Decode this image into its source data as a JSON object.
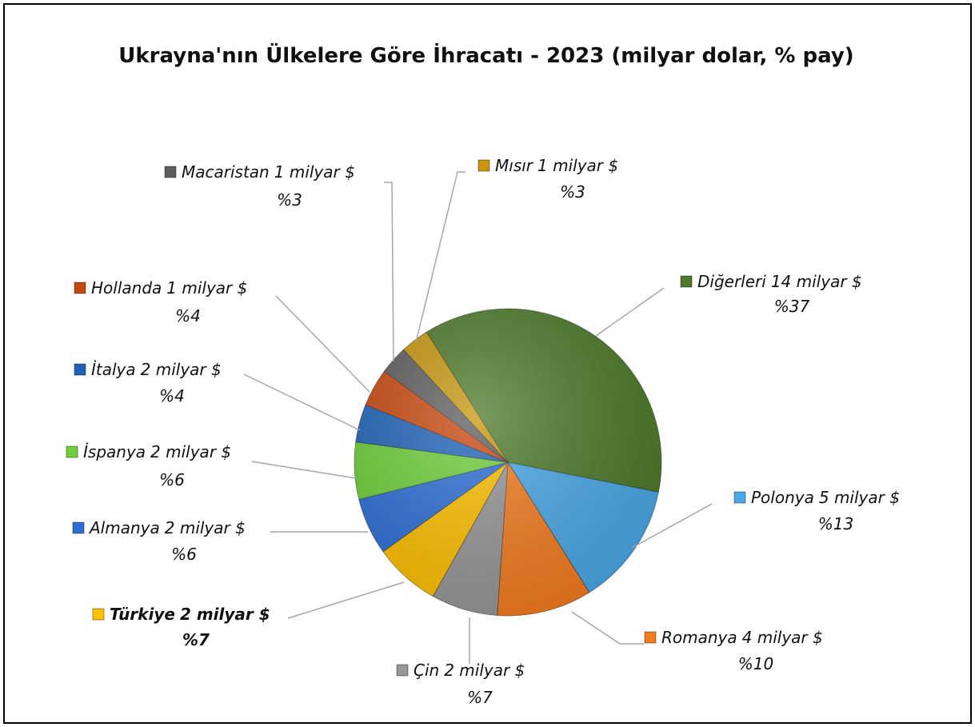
{
  "chart_data": {
    "type": "pie",
    "title": "Ukrayna'nın Ülkelere Göre İhracatı - 2023 (milyar dolar, % pay)",
    "categories": [
      "Diğerleri",
      "Polonya",
      "Romanya",
      "Çin",
      "Türkiye",
      "Almanya",
      "İspanya",
      "İtalya",
      "Hollanda",
      "Macaristan",
      "Mısır"
    ],
    "values": [
      37,
      13,
      10,
      7,
      7,
      6,
      6,
      4,
      4,
      3,
      3
    ],
    "value_labels": [
      "%37",
      "%13",
      "%10",
      "%7",
      "%7",
      "%6",
      "%6",
      "%4",
      "%4",
      "%3",
      "%3"
    ],
    "amounts": [
      14,
      5,
      4,
      2,
      2,
      2,
      2,
      2,
      1,
      1,
      1
    ],
    "amount_labels": [
      "14 milyar $",
      "5 milyar $",
      "4 milyar $",
      "2 milyar $",
      "2 milyar $",
      "2 milyar $",
      "2 milyar $",
      "2 milyar $",
      "1 milyar $",
      "1 milyar $",
      "1 milyar $"
    ],
    "colors": [
      "#4e7a2a",
      "#4aa8e8",
      "#f47c20",
      "#979797",
      "#ffc000",
      "#2e6fd6",
      "#6fcf3a",
      "#1f64b8",
      "#c9480e",
      "#5e5e5e",
      "#c8960c"
    ],
    "highlight": "Türkiye"
  }
}
